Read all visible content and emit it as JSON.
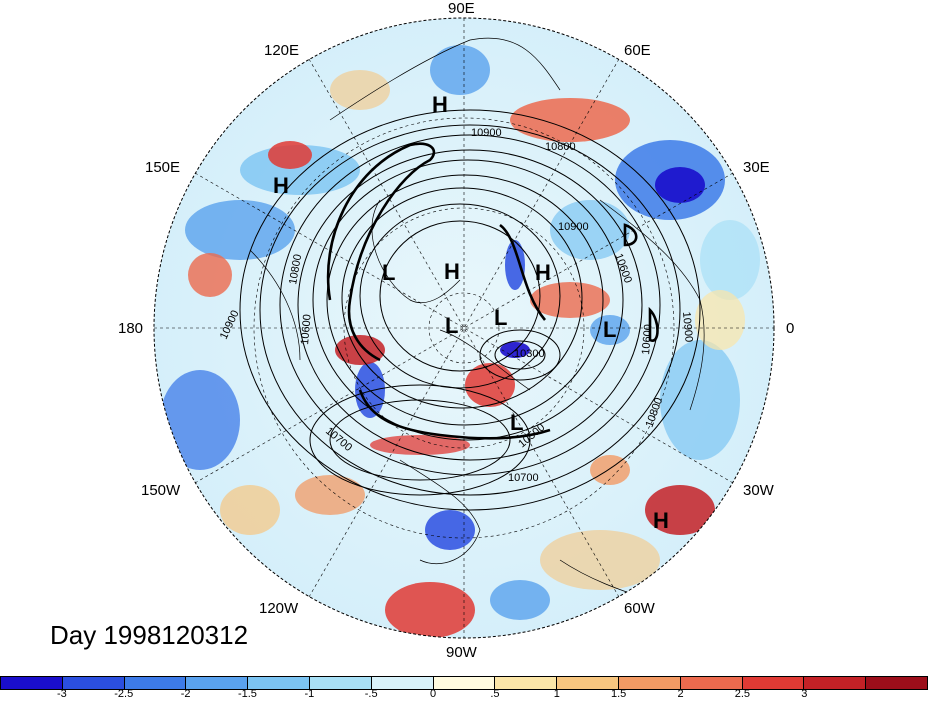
{
  "title": "Day 1998120312",
  "longitude_labels": {
    "lon_90E": "90E",
    "lon_120E": "120E",
    "lon_60E": "60E",
    "lon_150E": "150E",
    "lon_30E": "30E",
    "lon_180": "180",
    "lon_0": "0",
    "lon_150W": "150W",
    "lon_30W": "30W",
    "lon_120W": "120W",
    "lon_60W": "60W",
    "lon_90W": "90W"
  },
  "pressure_centers": [
    "H",
    "H",
    "H",
    "H",
    "H",
    "L",
    "L",
    "L",
    "L",
    "L"
  ],
  "contour_labels": [
    "10900",
    "10800",
    "10900",
    "10800",
    "10600",
    "10600",
    "10900",
    "10600",
    "10300",
    "10700",
    "10500",
    "10800",
    "10700",
    "10900"
  ],
  "colorbar": {
    "colors": [
      "#1a0ecc",
      "#2b4fe0",
      "#3d7be8",
      "#5aa2ee",
      "#7cc4f2",
      "#a8e0f6",
      "#d8f2fa",
      "#fffbe0",
      "#fbe6a8",
      "#f7c680",
      "#f29a64",
      "#ec6a4e",
      "#e03a34",
      "#c42126",
      "#9c0e1a"
    ],
    "labels": [
      "-3",
      "-2.5",
      "-2",
      "-1.5",
      "-1",
      "-.5",
      "0",
      ".5",
      "1",
      "1.5",
      "2",
      "2.5",
      "3"
    ]
  }
}
